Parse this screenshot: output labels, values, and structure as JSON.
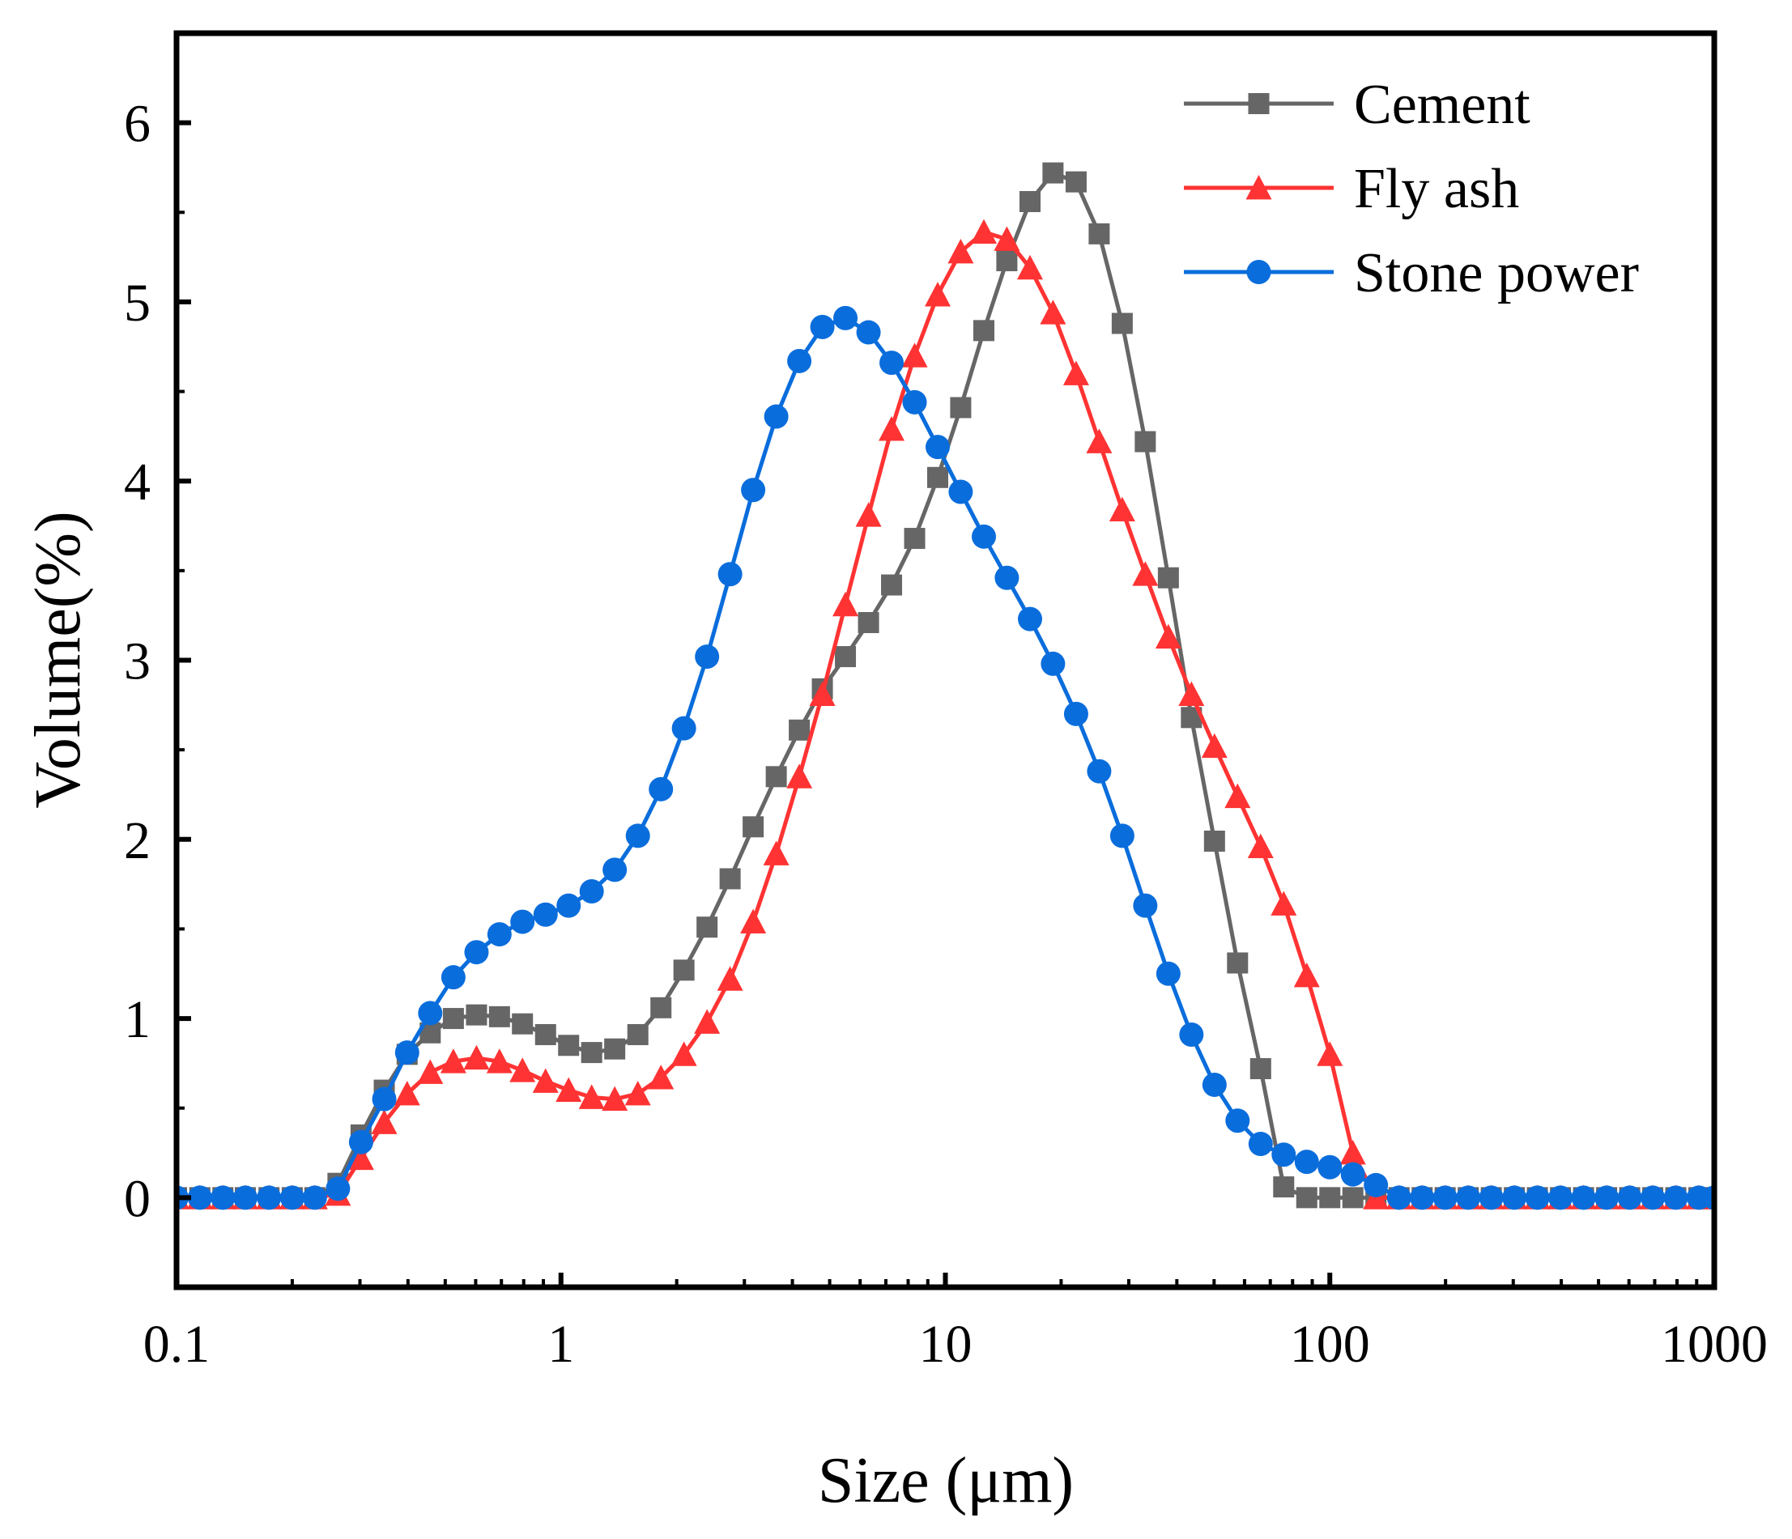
{
  "chart_data": {
    "type": "line",
    "xlabel": "Size (μm)",
    "ylabel": "Volume(%)",
    "xscale": "log",
    "xlim": [
      0.1,
      1000
    ],
    "ylim": [
      -0.5,
      6.5
    ],
    "grid": false,
    "legend_position": "top-right",
    "x_ticks": [
      {
        "value": 0.1,
        "label": "0.1"
      },
      {
        "value": 1,
        "label": "1"
      },
      {
        "value": 10,
        "label": "10"
      },
      {
        "value": 100,
        "label": "100"
      },
      {
        "value": 1000,
        "label": "1000"
      }
    ],
    "y_ticks": [
      {
        "value": 0,
        "label": "0"
      },
      {
        "value": 1,
        "label": "1"
      },
      {
        "value": 2,
        "label": "2"
      },
      {
        "value": 3,
        "label": "3"
      },
      {
        "value": 4,
        "label": "4"
      },
      {
        "value": 5,
        "label": "5"
      },
      {
        "value": 6,
        "label": "6"
      }
    ],
    "series": [
      {
        "name": "Cement",
        "color": "#666666",
        "marker": "square",
        "points": [
          [
            0.1,
            0
          ],
          [
            0.115,
            0
          ],
          [
            0.132,
            0
          ],
          [
            0.151,
            0
          ],
          [
            0.174,
            0
          ],
          [
            0.2,
            0
          ],
          [
            0.229,
            0
          ],
          [
            0.263,
            0.08
          ],
          [
            0.302,
            0.35
          ],
          [
            0.347,
            0.6
          ],
          [
            0.398,
            0.8
          ],
          [
            0.457,
            0.92
          ],
          [
            0.525,
            1.0
          ],
          [
            0.603,
            1.02
          ],
          [
            0.692,
            1.01
          ],
          [
            0.794,
            0.97
          ],
          [
            0.912,
            0.91
          ],
          [
            1.047,
            0.85
          ],
          [
            1.202,
            0.81
          ],
          [
            1.38,
            0.83
          ],
          [
            1.585,
            0.91
          ],
          [
            1.82,
            1.06
          ],
          [
            2.089,
            1.27
          ],
          [
            2.399,
            1.51
          ],
          [
            2.754,
            1.78
          ],
          [
            3.162,
            2.07
          ],
          [
            3.631,
            2.35
          ],
          [
            4.169,
            2.61
          ],
          [
            4.786,
            2.84
          ],
          [
            5.495,
            3.02
          ],
          [
            6.31,
            3.21
          ],
          [
            7.244,
            3.42
          ],
          [
            8.318,
            3.68
          ],
          [
            9.55,
            4.02
          ],
          [
            10.96,
            4.41
          ],
          [
            12.59,
            4.84
          ],
          [
            14.45,
            5.23
          ],
          [
            16.6,
            5.56
          ],
          [
            19.05,
            5.72
          ],
          [
            21.88,
            5.67
          ],
          [
            25.12,
            5.38
          ],
          [
            28.84,
            4.88
          ],
          [
            33.11,
            4.22
          ],
          [
            38.02,
            3.46
          ],
          [
            43.65,
            2.68
          ],
          [
            50.12,
            1.99
          ],
          [
            57.54,
            1.31
          ],
          [
            66.07,
            0.72
          ],
          [
            75.86,
            0.06
          ],
          [
            87.1,
            0
          ],
          [
            100,
            0
          ],
          [
            114.8,
            0
          ],
          [
            131.8,
            0
          ],
          [
            151.4,
            0
          ],
          [
            173.8,
            0
          ],
          [
            199.5,
            0
          ],
          [
            229.1,
            0
          ],
          [
            263,
            0
          ],
          [
            302,
            0
          ],
          [
            346.7,
            0
          ],
          [
            398.1,
            0
          ],
          [
            457.1,
            0
          ],
          [
            524.8,
            0
          ],
          [
            602.6,
            0
          ],
          [
            691.8,
            0
          ],
          [
            794.3,
            0
          ],
          [
            912,
            0
          ],
          [
            1000,
            0
          ]
        ]
      },
      {
        "name": "Fly ash",
        "color": "#ff3333",
        "marker": "triangle",
        "points": [
          [
            0.1,
            0
          ],
          [
            0.115,
            0
          ],
          [
            0.132,
            0
          ],
          [
            0.151,
            0
          ],
          [
            0.174,
            0
          ],
          [
            0.2,
            0
          ],
          [
            0.229,
            0
          ],
          [
            0.263,
            0.02
          ],
          [
            0.302,
            0.22
          ],
          [
            0.347,
            0.42
          ],
          [
            0.398,
            0.58
          ],
          [
            0.457,
            0.7
          ],
          [
            0.525,
            0.76
          ],
          [
            0.603,
            0.78
          ],
          [
            0.692,
            0.76
          ],
          [
            0.794,
            0.71
          ],
          [
            0.912,
            0.65
          ],
          [
            1.047,
            0.6
          ],
          [
            1.202,
            0.56
          ],
          [
            1.38,
            0.55
          ],
          [
            1.585,
            0.58
          ],
          [
            1.82,
            0.67
          ],
          [
            2.089,
            0.8
          ],
          [
            2.399,
            0.98
          ],
          [
            2.754,
            1.22
          ],
          [
            3.162,
            1.54
          ],
          [
            3.631,
            1.92
          ],
          [
            4.169,
            2.35
          ],
          [
            4.786,
            2.81
          ],
          [
            5.495,
            3.31
          ],
          [
            6.31,
            3.81
          ],
          [
            7.244,
            4.29
          ],
          [
            8.318,
            4.7
          ],
          [
            9.55,
            5.04
          ],
          [
            10.96,
            5.28
          ],
          [
            12.59,
            5.39
          ],
          [
            14.45,
            5.35
          ],
          [
            16.6,
            5.19
          ],
          [
            19.05,
            4.94
          ],
          [
            21.88,
            4.6
          ],
          [
            25.12,
            4.22
          ],
          [
            28.84,
            3.84
          ],
          [
            33.11,
            3.48
          ],
          [
            38.02,
            3.13
          ],
          [
            43.65,
            2.81
          ],
          [
            50.12,
            2.52
          ],
          [
            57.54,
            2.24
          ],
          [
            66.07,
            1.96
          ],
          [
            75.86,
            1.64
          ],
          [
            87.1,
            1.24
          ],
          [
            100,
            0.8
          ],
          [
            114.8,
            0.25
          ],
          [
            131.8,
            0
          ],
          [
            151.4,
            0
          ],
          [
            173.8,
            0
          ],
          [
            199.5,
            0
          ],
          [
            229.1,
            0
          ],
          [
            263,
            0
          ],
          [
            302,
            0
          ],
          [
            346.7,
            0
          ],
          [
            398.1,
            0
          ],
          [
            457.1,
            0
          ],
          [
            524.8,
            0
          ],
          [
            602.6,
            0
          ],
          [
            691.8,
            0
          ],
          [
            794.3,
            0
          ],
          [
            912,
            0
          ],
          [
            1000,
            0
          ]
        ]
      },
      {
        "name": "Stone power",
        "color": "#0a6ddc",
        "marker": "circle",
        "points": [
          [
            0.1,
            0
          ],
          [
            0.115,
            0
          ],
          [
            0.132,
            0
          ],
          [
            0.151,
            0
          ],
          [
            0.174,
            0
          ],
          [
            0.2,
            0
          ],
          [
            0.229,
            0
          ],
          [
            0.263,
            0.05
          ],
          [
            0.302,
            0.31
          ],
          [
            0.347,
            0.55
          ],
          [
            0.398,
            0.81
          ],
          [
            0.457,
            1.03
          ],
          [
            0.525,
            1.23
          ],
          [
            0.603,
            1.37
          ],
          [
            0.692,
            1.47
          ],
          [
            0.794,
            1.54
          ],
          [
            0.912,
            1.58
          ],
          [
            1.047,
            1.63
          ],
          [
            1.202,
            1.71
          ],
          [
            1.38,
            1.83
          ],
          [
            1.585,
            2.02
          ],
          [
            1.82,
            2.28
          ],
          [
            2.089,
            2.62
          ],
          [
            2.399,
            3.02
          ],
          [
            2.754,
            3.48
          ],
          [
            3.162,
            3.95
          ],
          [
            3.631,
            4.36
          ],
          [
            4.169,
            4.67
          ],
          [
            4.786,
            4.86
          ],
          [
            5.495,
            4.91
          ],
          [
            6.31,
            4.83
          ],
          [
            7.244,
            4.66
          ],
          [
            8.318,
            4.44
          ],
          [
            9.55,
            4.19
          ],
          [
            10.96,
            3.94
          ],
          [
            12.59,
            3.69
          ],
          [
            14.45,
            3.46
          ],
          [
            16.6,
            3.23
          ],
          [
            19.05,
            2.98
          ],
          [
            21.88,
            2.7
          ],
          [
            25.12,
            2.38
          ],
          [
            28.84,
            2.02
          ],
          [
            33.11,
            1.63
          ],
          [
            38.02,
            1.25
          ],
          [
            43.65,
            0.91
          ],
          [
            50.12,
            0.63
          ],
          [
            57.54,
            0.43
          ],
          [
            66.07,
            0.3
          ],
          [
            75.86,
            0.24
          ],
          [
            87.1,
            0.2
          ],
          [
            100,
            0.17
          ],
          [
            114.8,
            0.13
          ],
          [
            131.8,
            0.07
          ],
          [
            151.4,
            0
          ],
          [
            173.8,
            0
          ],
          [
            199.5,
            0
          ],
          [
            229.1,
            0
          ],
          [
            263,
            0
          ],
          [
            302,
            0
          ],
          [
            346.7,
            0
          ],
          [
            398.1,
            0
          ],
          [
            457.1,
            0
          ],
          [
            524.8,
            0
          ],
          [
            602.6,
            0
          ],
          [
            691.8,
            0
          ],
          [
            794.3,
            0
          ],
          [
            912,
            0
          ],
          [
            1000,
            0
          ]
        ]
      }
    ]
  }
}
